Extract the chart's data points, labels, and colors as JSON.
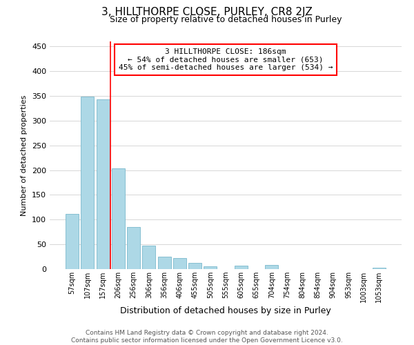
{
  "title": "3, HILLTHORPE CLOSE, PURLEY, CR8 2JZ",
  "subtitle": "Size of property relative to detached houses in Purley",
  "xlabel": "Distribution of detached houses by size in Purley",
  "ylabel": "Number of detached properties",
  "categories": [
    "57sqm",
    "107sqm",
    "157sqm",
    "206sqm",
    "256sqm",
    "306sqm",
    "356sqm",
    "406sqm",
    "455sqm",
    "505sqm",
    "555sqm",
    "605sqm",
    "655sqm",
    "704sqm",
    "754sqm",
    "804sqm",
    "854sqm",
    "904sqm",
    "953sqm",
    "1003sqm",
    "1053sqm"
  ],
  "values": [
    112,
    348,
    343,
    203,
    85,
    47,
    25,
    22,
    12,
    5,
    0,
    7,
    0,
    8,
    0,
    0,
    0,
    0,
    0,
    0,
    3
  ],
  "bar_color": "#add8e6",
  "bar_edge_color": "#7ab8cc",
  "vline_x": 2.5,
  "vline_color": "red",
  "annotation_title": "3 HILLTHORPE CLOSE: 186sqm",
  "annotation_line1": "← 54% of detached houses are smaller (653)",
  "annotation_line2": "45% of semi-detached houses are larger (534) →",
  "annotation_box_color": "white",
  "annotation_box_edge_color": "red",
  "footer_line1": "Contains HM Land Registry data © Crown copyright and database right 2024.",
  "footer_line2": "Contains public sector information licensed under the Open Government Licence v3.0.",
  "ylim": [
    0,
    460
  ],
  "yticks": [
    0,
    50,
    100,
    150,
    200,
    250,
    300,
    350,
    400,
    450
  ],
  "background_color": "white",
  "grid_color": "#d0d0d0",
  "title_fontsize": 11,
  "subtitle_fontsize": 9,
  "ylabel_fontsize": 8,
  "xlabel_fontsize": 9,
  "annotation_fontsize": 8,
  "footer_fontsize": 6.5,
  "tick_fontsize": 8,
  "xtick_fontsize": 7
}
